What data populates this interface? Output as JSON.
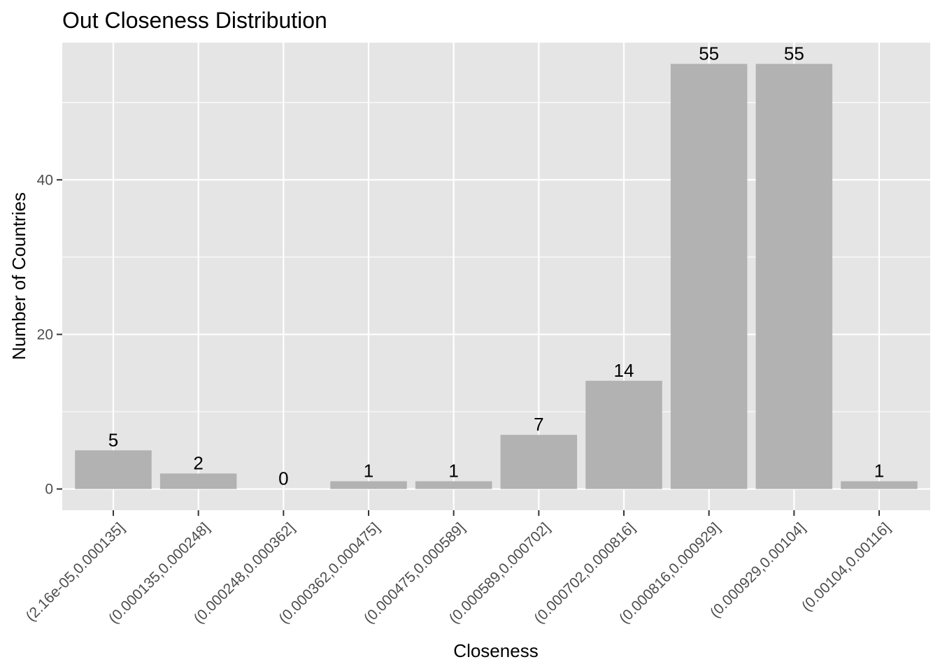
{
  "chart_data": {
    "type": "bar",
    "title": "Out Closeness Distribution",
    "xlabel": "Closeness",
    "ylabel": "Number of Countries",
    "categories": [
      "(2.16e-05,0.000135]",
      "(0.000135,0.000248]",
      "(0.000248,0.000362]",
      "(0.000362,0.000475]",
      "(0.000475,0.000589]",
      "(0.000589,0.000702]",
      "(0.000702,0.000816]",
      "(0.000816,0.000929]",
      "(0.000929,0.00104]",
      "(0.00104,0.00116]"
    ],
    "values": [
      5,
      2,
      0,
      1,
      1,
      7,
      14,
      55,
      55,
      1
    ],
    "ylim": [
      -2.75,
      57.75
    ],
    "yticks": [
      0,
      20,
      40
    ],
    "grid": true,
    "legend": "none",
    "colors": {
      "bar": "#b2b2b2",
      "panel": "#e5e5e5",
      "grid": "#ffffff"
    }
  }
}
